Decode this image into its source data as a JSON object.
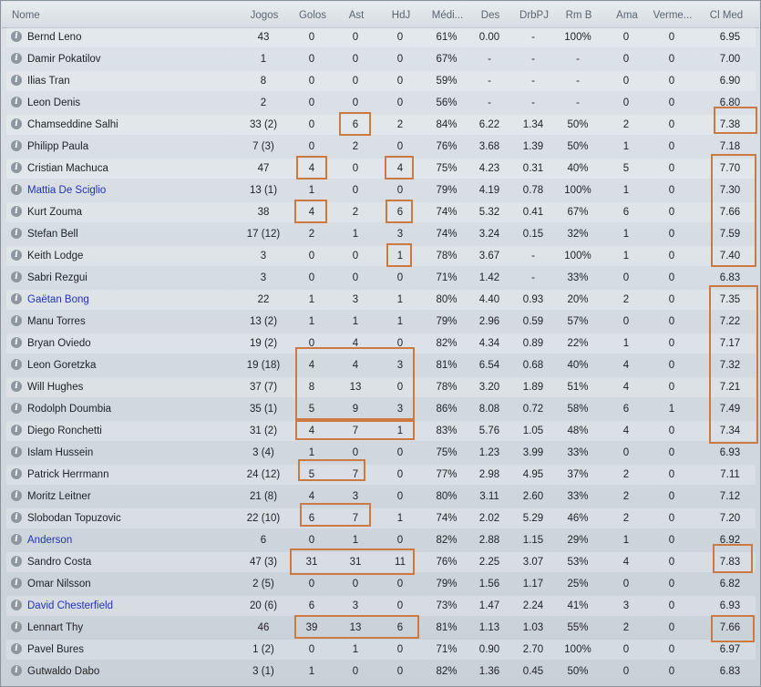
{
  "table": {
    "headers": [
      "Nome",
      "Jogos",
      "Golos",
      "Ast",
      "HdJ",
      "Médi...",
      "Des",
      "DrbPJ",
      "Rm B",
      "Ama",
      "Verme...",
      "Cl Med"
    ],
    "rows": [
      {
        "name": "Bernd Leno",
        "jogos": "43",
        "golos": "0",
        "ast": "0",
        "hdj": "0",
        "media": "61%",
        "des": "0.00",
        "drbpj": "-",
        "rmb": "100%",
        "ama": "0",
        "verm": "0",
        "clmed": "6.95",
        "link": false
      },
      {
        "name": "Damir Pokatilov",
        "jogos": "1",
        "golos": "0",
        "ast": "0",
        "hdj": "0",
        "media": "67%",
        "des": "-",
        "drbpj": "-",
        "rmb": "-",
        "ama": "0",
        "verm": "0",
        "clmed": "7.00",
        "link": false
      },
      {
        "name": "Ilias Tran",
        "jogos": "8",
        "golos": "0",
        "ast": "0",
        "hdj": "0",
        "media": "59%",
        "des": "-",
        "drbpj": "-",
        "rmb": "-",
        "ama": "0",
        "verm": "0",
        "clmed": "6.90",
        "link": false
      },
      {
        "name": "Leon Denis",
        "jogos": "2",
        "golos": "0",
        "ast": "0",
        "hdj": "0",
        "media": "56%",
        "des": "-",
        "drbpj": "-",
        "rmb": "-",
        "ama": "0",
        "verm": "0",
        "clmed": "6.80",
        "link": false
      },
      {
        "name": "Chamseddine Salhi",
        "jogos": "33 (2)",
        "golos": "0",
        "ast": "6",
        "hdj": "2",
        "media": "84%",
        "des": "6.22",
        "drbpj": "1.34",
        "rmb": "50%",
        "ama": "2",
        "verm": "0",
        "clmed": "7.38",
        "link": false
      },
      {
        "name": "Philipp Paula",
        "jogos": "7 (3)",
        "golos": "0",
        "ast": "2",
        "hdj": "0",
        "media": "76%",
        "des": "3.68",
        "drbpj": "1.39",
        "rmb": "50%",
        "ama": "1",
        "verm": "0",
        "clmed": "7.18",
        "link": false
      },
      {
        "name": "Cristian Machuca",
        "jogos": "47",
        "golos": "4",
        "ast": "0",
        "hdj": "4",
        "media": "75%",
        "des": "4.23",
        "drbpj": "0.31",
        "rmb": "40%",
        "ama": "5",
        "verm": "0",
        "clmed": "7.70",
        "link": false
      },
      {
        "name": "Mattia De Sciglio",
        "jogos": "13 (1)",
        "golos": "1",
        "ast": "0",
        "hdj": "0",
        "media": "79%",
        "des": "4.19",
        "drbpj": "0.78",
        "rmb": "100%",
        "ama": "1",
        "verm": "0",
        "clmed": "7.30",
        "link": true
      },
      {
        "name": "Kurt Zouma",
        "jogos": "38",
        "golos": "4",
        "ast": "2",
        "hdj": "6",
        "media": "74%",
        "des": "5.32",
        "drbpj": "0.41",
        "rmb": "67%",
        "ama": "6",
        "verm": "0",
        "clmed": "7.66",
        "link": false
      },
      {
        "name": "Stefan Bell",
        "jogos": "17 (12)",
        "golos": "2",
        "ast": "1",
        "hdj": "3",
        "media": "74%",
        "des": "3.24",
        "drbpj": "0.15",
        "rmb": "32%",
        "ama": "1",
        "verm": "0",
        "clmed": "7.59",
        "link": false
      },
      {
        "name": "Keith Lodge",
        "jogos": "3",
        "golos": "0",
        "ast": "0",
        "hdj": "1",
        "media": "78%",
        "des": "3.67",
        "drbpj": "-",
        "rmb": "100%",
        "ama": "1",
        "verm": "0",
        "clmed": "7.40",
        "link": false
      },
      {
        "name": "Sabri Rezgui",
        "jogos": "3",
        "golos": "0",
        "ast": "0",
        "hdj": "0",
        "media": "71%",
        "des": "1.42",
        "drbpj": "-",
        "rmb": "33%",
        "ama": "0",
        "verm": "0",
        "clmed": "6.83",
        "link": false
      },
      {
        "name": "Gaëtan Bong",
        "jogos": "22",
        "golos": "1",
        "ast": "3",
        "hdj": "1",
        "media": "80%",
        "des": "4.40",
        "drbpj": "0.93",
        "rmb": "20%",
        "ama": "2",
        "verm": "0",
        "clmed": "7.35",
        "link": true
      },
      {
        "name": "Manu Torres",
        "jogos": "13 (2)",
        "golos": "1",
        "ast": "1",
        "hdj": "1",
        "media": "79%",
        "des": "2.96",
        "drbpj": "0.59",
        "rmb": "57%",
        "ama": "0",
        "verm": "0",
        "clmed": "7.22",
        "link": false
      },
      {
        "name": "Bryan Oviedo",
        "jogos": "19 (2)",
        "golos": "0",
        "ast": "4",
        "hdj": "0",
        "media": "82%",
        "des": "4.34",
        "drbpj": "0.89",
        "rmb": "22%",
        "ama": "1",
        "verm": "0",
        "clmed": "7.17",
        "link": false
      },
      {
        "name": "Leon Goretzka",
        "jogos": "19 (18)",
        "golos": "4",
        "ast": "4",
        "hdj": "3",
        "media": "81%",
        "des": "6.54",
        "drbpj": "0.68",
        "rmb": "40%",
        "ama": "4",
        "verm": "0",
        "clmed": "7.32",
        "link": false
      },
      {
        "name": "Will Hughes",
        "jogos": "37 (7)",
        "golos": "8",
        "ast": "13",
        "hdj": "0",
        "media": "78%",
        "des": "3.20",
        "drbpj": "1.89",
        "rmb": "51%",
        "ama": "4",
        "verm": "0",
        "clmed": "7.21",
        "link": false
      },
      {
        "name": "Rodolph Doumbia",
        "jogos": "35 (1)",
        "golos": "5",
        "ast": "9",
        "hdj": "3",
        "media": "86%",
        "des": "8.08",
        "drbpj": "0.72",
        "rmb": "58%",
        "ama": "6",
        "verm": "1",
        "clmed": "7.49",
        "link": false
      },
      {
        "name": "Diego Ronchetti",
        "jogos": "31 (2)",
        "golos": "4",
        "ast": "7",
        "hdj": "1",
        "media": "83%",
        "des": "5.76",
        "drbpj": "1.05",
        "rmb": "48%",
        "ama": "4",
        "verm": "0",
        "clmed": "7.34",
        "link": false
      },
      {
        "name": "Islam Hussein",
        "jogos": "3 (4)",
        "golos": "1",
        "ast": "0",
        "hdj": "0",
        "media": "75%",
        "des": "1.23",
        "drbpj": "3.99",
        "rmb": "33%",
        "ama": "0",
        "verm": "0",
        "clmed": "6.93",
        "link": false
      },
      {
        "name": "Patrick Herrmann",
        "jogos": "24 (12)",
        "golos": "5",
        "ast": "7",
        "hdj": "0",
        "media": "77%",
        "des": "2.98",
        "drbpj": "4.95",
        "rmb": "37%",
        "ama": "2",
        "verm": "0",
        "clmed": "7.11",
        "link": false
      },
      {
        "name": "Moritz Leitner",
        "jogos": "21 (8)",
        "golos": "4",
        "ast": "3",
        "hdj": "0",
        "media": "80%",
        "des": "3.11",
        "drbpj": "2.60",
        "rmb": "33%",
        "ama": "2",
        "verm": "0",
        "clmed": "7.12",
        "link": false
      },
      {
        "name": "Slobodan Topuzovic",
        "jogos": "22 (10)",
        "golos": "6",
        "ast": "7",
        "hdj": "1",
        "media": "74%",
        "des": "2.02",
        "drbpj": "5.29",
        "rmb": "46%",
        "ama": "2",
        "verm": "0",
        "clmed": "7.20",
        "link": false
      },
      {
        "name": "Anderson",
        "jogos": "6",
        "golos": "0",
        "ast": "1",
        "hdj": "0",
        "media": "82%",
        "des": "2.88",
        "drbpj": "1.15",
        "rmb": "29%",
        "ama": "1",
        "verm": "0",
        "clmed": "6.92",
        "link": true
      },
      {
        "name": "Sandro Costa",
        "jogos": "47 (3)",
        "golos": "31",
        "ast": "31",
        "hdj": "11",
        "media": "76%",
        "des": "2.25",
        "drbpj": "3.07",
        "rmb": "53%",
        "ama": "4",
        "verm": "0",
        "clmed": "7.83",
        "link": false
      },
      {
        "name": "Omar Nilsson",
        "jogos": "2 (5)",
        "golos": "0",
        "ast": "0",
        "hdj": "0",
        "media": "79%",
        "des": "1.56",
        "drbpj": "1.17",
        "rmb": "25%",
        "ama": "0",
        "verm": "0",
        "clmed": "6.82",
        "link": false
      },
      {
        "name": "David Chesterfield",
        "jogos": "20 (6)",
        "golos": "6",
        "ast": "3",
        "hdj": "0",
        "media": "73%",
        "des": "1.47",
        "drbpj": "2.24",
        "rmb": "41%",
        "ama": "3",
        "verm": "0",
        "clmed": "6.93",
        "link": true
      },
      {
        "name": "Lennart Thy",
        "jogos": "46",
        "golos": "39",
        "ast": "13",
        "hdj": "6",
        "media": "81%",
        "des": "1.13",
        "drbpj": "1.03",
        "rmb": "55%",
        "ama": "2",
        "verm": "0",
        "clmed": "7.66",
        "link": false
      },
      {
        "name": "Pavel Bures",
        "jogos": "1 (2)",
        "golos": "0",
        "ast": "1",
        "hdj": "0",
        "media": "71%",
        "des": "0.90",
        "drbpj": "2.70",
        "rmb": "100%",
        "ama": "0",
        "verm": "0",
        "clmed": "6.97",
        "link": false
      },
      {
        "name": "Gutwaldo Dabo",
        "jogos": "3 (1)",
        "golos": "1",
        "ast": "0",
        "hdj": "0",
        "media": "82%",
        "des": "1.36",
        "drbpj": "0.45",
        "rmb": "50%",
        "ama": "0",
        "verm": "0",
        "clmed": "6.83",
        "link": false
      }
    ]
  },
  "colors": {
    "highlight": "#cc7a44",
    "link": "#2233bb"
  },
  "icons": {
    "row_info": "info-icon"
  }
}
